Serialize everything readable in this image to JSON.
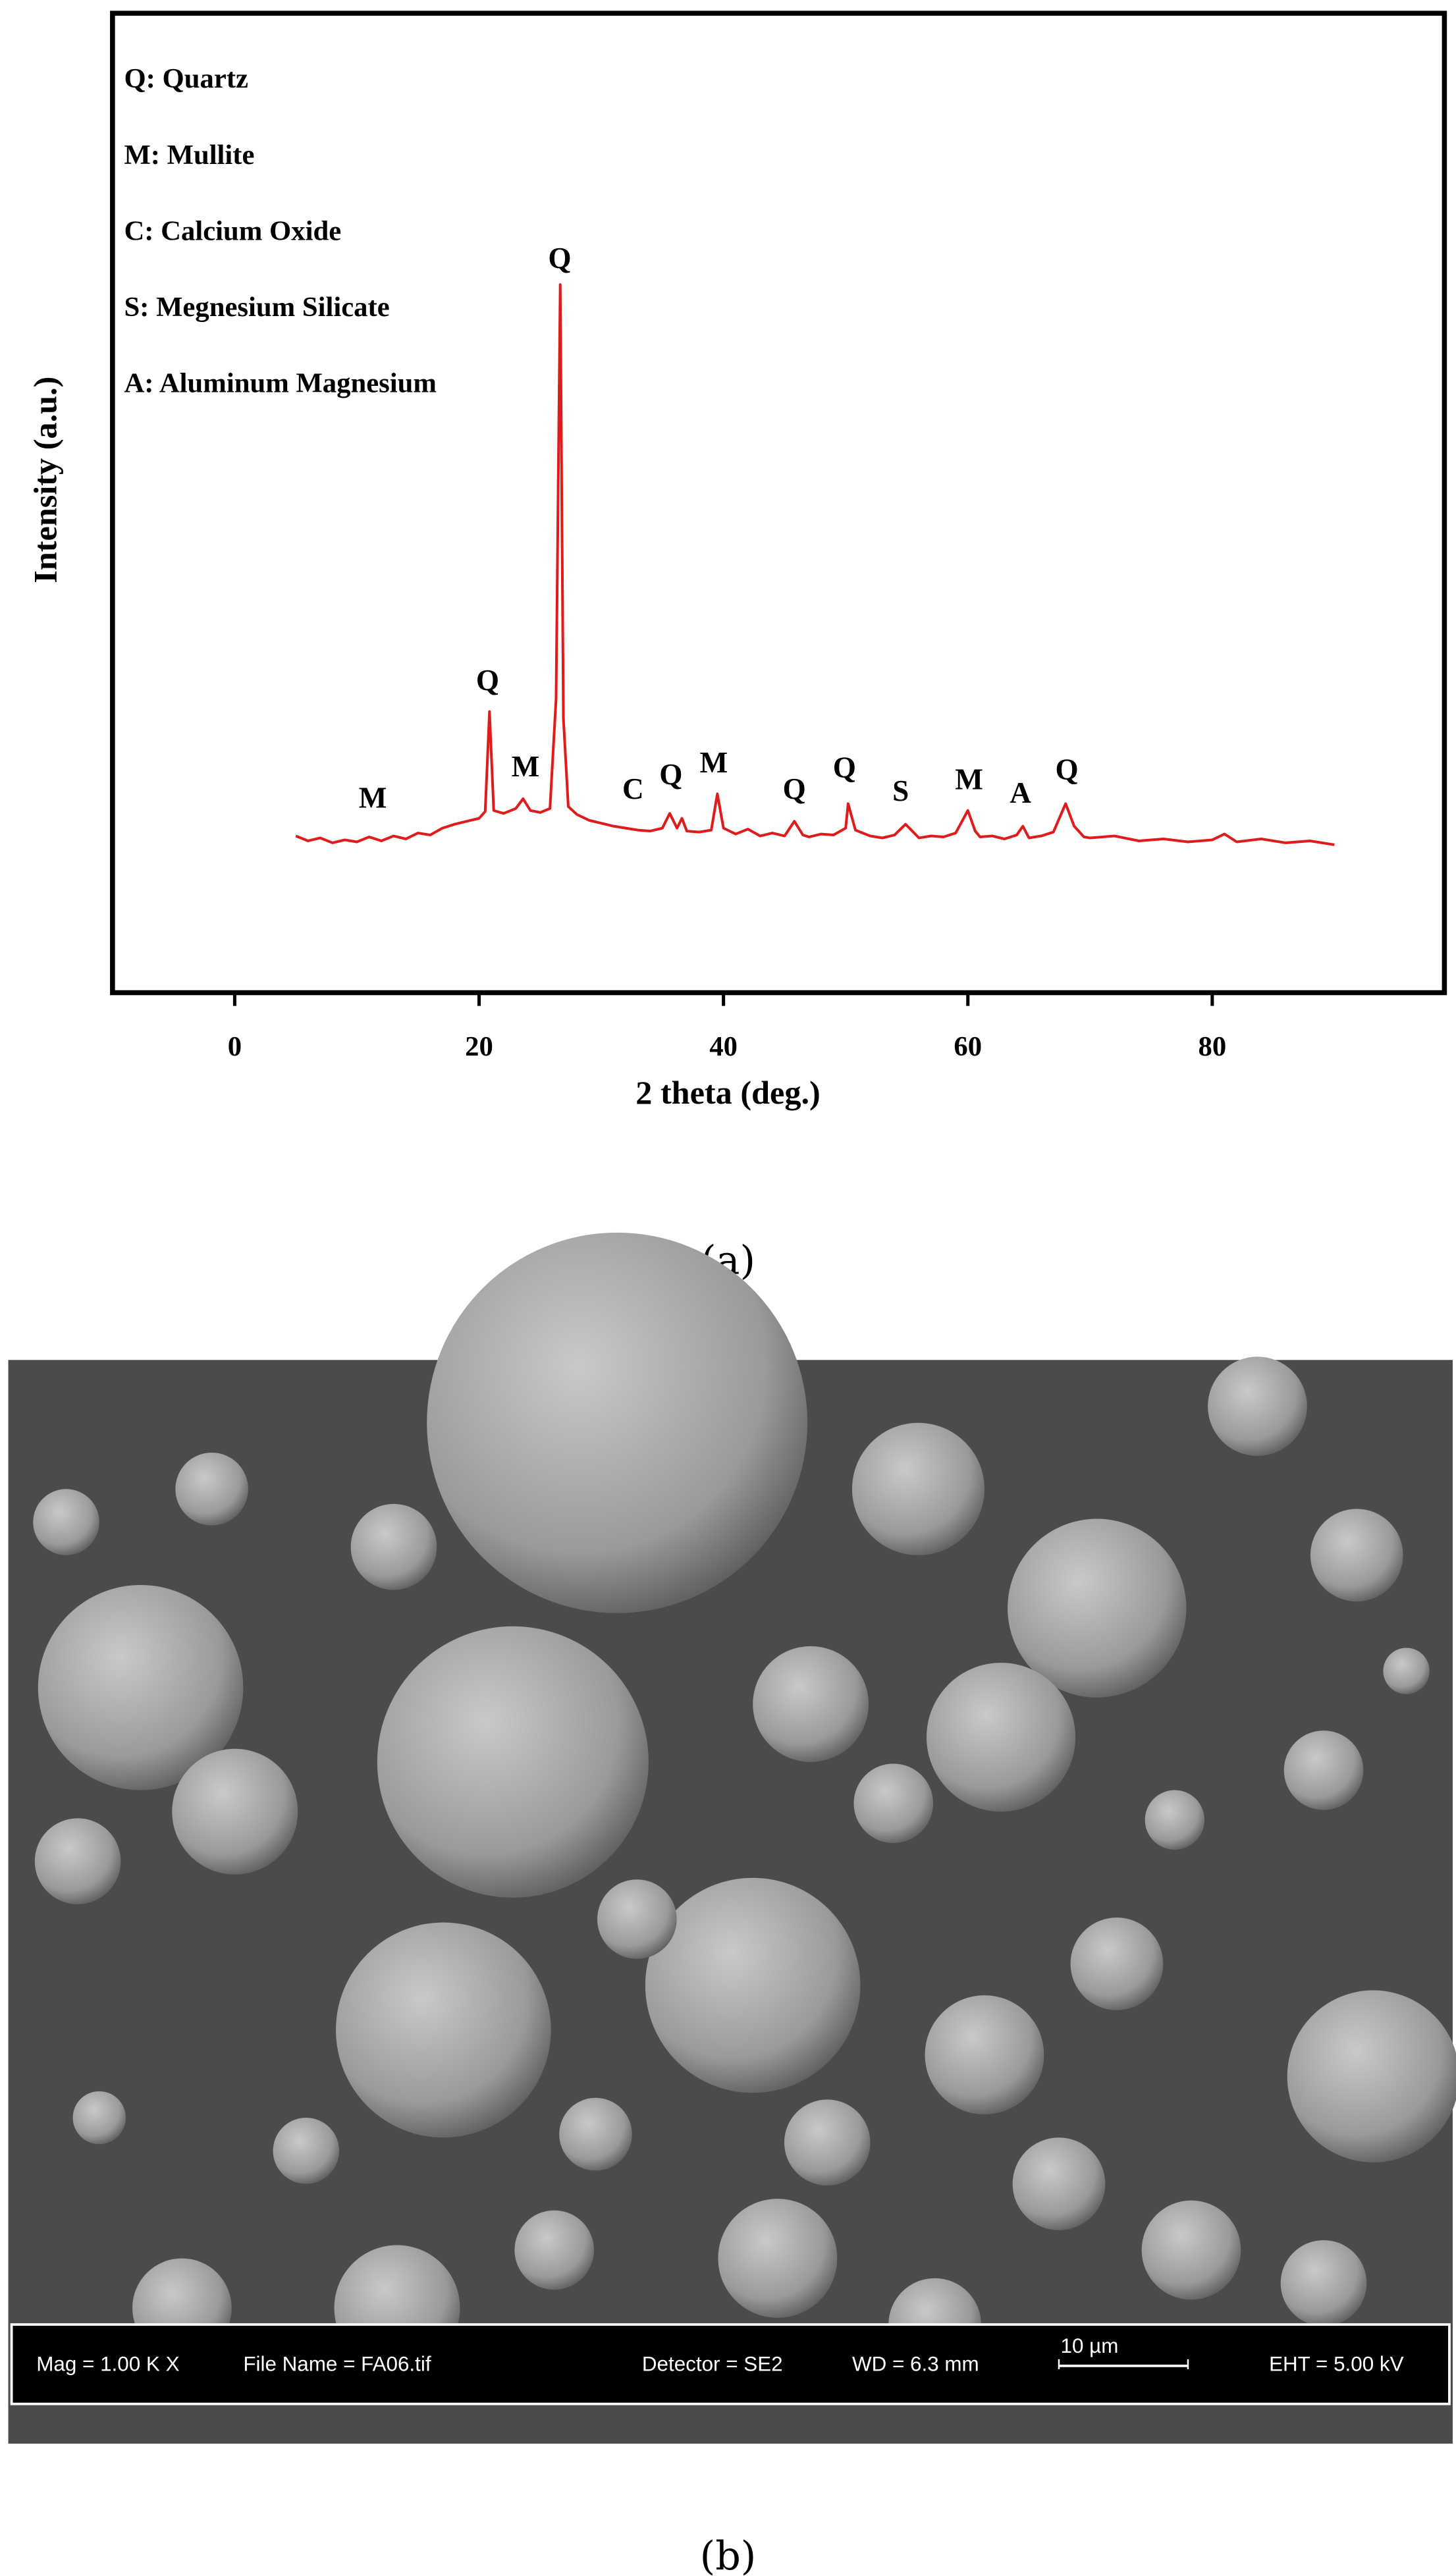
{
  "chart_data": {
    "type": "line",
    "xlabel": "2 theta (deg.)",
    "ylabel": "Intensity (a.u.)",
    "key": [
      "Q: Quartz",
      "M: Mullite",
      "C: Calcium Oxide",
      "S: Megnesium Silicate",
      "A: Aluminum Magnesium"
    ],
    "color": "#e01b1b",
    "xlim": [
      -10,
      99
    ],
    "xticks": [
      0,
      20,
      40,
      60,
      80
    ],
    "ylim": [
      0,
      100
    ],
    "x": [
      5,
      6,
      7,
      8,
      9,
      10,
      11,
      12,
      13,
      14,
      15,
      16,
      17,
      18,
      19,
      20,
      20.5,
      20.85,
      21.2,
      22,
      23,
      23.6,
      24.2,
      25,
      25.8,
      26.3,
      26.64,
      26.9,
      27.3,
      28,
      29,
      30,
      31,
      32,
      33,
      34,
      35,
      35.6,
      36.2,
      36.6,
      37,
      38,
      39,
      39.5,
      40,
      41,
      42,
      43,
      44,
      45,
      45.8,
      46.5,
      47,
      48,
      49,
      50,
      50.2,
      50.8,
      52,
      53,
      54,
      54.9,
      56,
      57,
      58,
      59,
      60,
      60.6,
      61,
      62,
      63,
      64,
      64.5,
      65,
      66,
      67,
      68,
      68.7,
      69.5,
      70,
      72,
      74,
      76,
      78,
      80,
      81,
      82,
      84,
      86,
      88,
      90
    ],
    "values": [
      16,
      15.5,
      15.8,
      15.3,
      15.6,
      15.4,
      15.9,
      15.5,
      16,
      15.7,
      16.3,
      16.1,
      16.8,
      17.2,
      17.5,
      17.8,
      18.5,
      28.7,
      18.6,
      18.3,
      18.8,
      19.8,
      18.6,
      18.4,
      18.8,
      30,
      72.3,
      28,
      19,
      18.2,
      17.6,
      17.3,
      17,
      16.8,
      16.6,
      16.5,
      16.8,
      18.3,
      16.8,
      17.8,
      16.5,
      16.4,
      16.6,
      20.3,
      16.8,
      16.2,
      16.7,
      16,
      16.3,
      16,
      17.5,
      16.1,
      15.9,
      16.2,
      16.1,
      16.8,
      19.3,
      16.6,
      16,
      15.8,
      16.1,
      17.2,
      15.8,
      16,
      15.9,
      16.3,
      18.6,
      16.5,
      15.9,
      16,
      15.7,
      16.1,
      17,
      15.8,
      16,
      16.4,
      19.3,
      17,
      15.9,
      15.8,
      16,
      15.5,
      15.7,
      15.4,
      15.6,
      16.2,
      15.4,
      15.7,
      15.3,
      15.5,
      15.1
    ],
    "annotations": [
      {
        "text": "M",
        "x": 11.3,
        "y": 19.9
      },
      {
        "text": "Q",
        "x": 20.7,
        "y": 31.9
      },
      {
        "text": "M",
        "x": 23.8,
        "y": 23.1
      },
      {
        "text": "Q",
        "x": 26.6,
        "y": 75
      },
      {
        "text": "C",
        "x": 32.6,
        "y": 20.8
      },
      {
        "text": "Q",
        "x": 35.7,
        "y": 22.3
      },
      {
        "text": "M",
        "x": 39.2,
        "y": 23.5
      },
      {
        "text": "Q",
        "x": 45.8,
        "y": 20.8
      },
      {
        "text": "Q",
        "x": 49.9,
        "y": 23
      },
      {
        "text": "S",
        "x": 54.5,
        "y": 20.6
      },
      {
        "text": "M",
        "x": 60.1,
        "y": 21.8
      },
      {
        "text": "A",
        "x": 64.3,
        "y": 20.4
      },
      {
        "text": "Q",
        "x": 68.1,
        "y": 22.8
      }
    ]
  },
  "captions": [
    "(a)",
    "(b)"
  ],
  "sem_info": [
    "Mag =   1.00 K X",
    "File Name = FA06.tif",
    "Detector = SE2",
    "WD =  6.3 mm",
    "10 µm",
    "EHT =  5.00 kV"
  ]
}
